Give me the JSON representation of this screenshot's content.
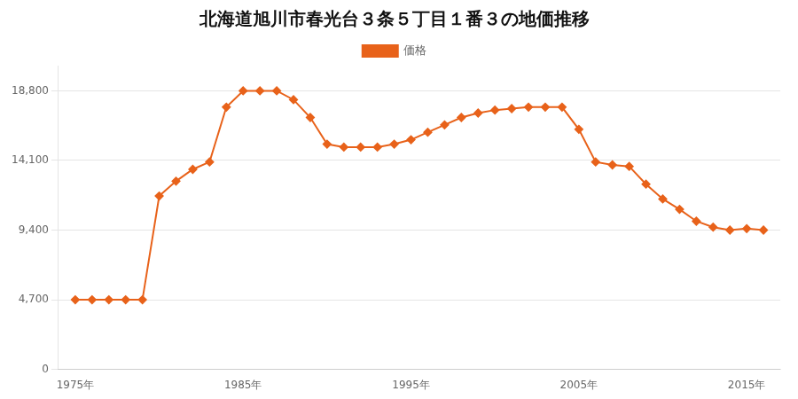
{
  "chart_data": {
    "type": "line",
    "title": "北海道旭川市春光台３条５丁目１番３の地価推移",
    "x": [
      1975,
      1976,
      1977,
      1978,
      1979,
      1980,
      1981,
      1982,
      1983,
      1984,
      1985,
      1986,
      1987,
      1988,
      1989,
      1990,
      1991,
      1992,
      1993,
      1994,
      1995,
      1996,
      1997,
      1998,
      1999,
      2000,
      2001,
      2002,
      2003,
      2004,
      2005,
      2006,
      2007,
      2008,
      2009,
      2010,
      2011,
      2012,
      2013,
      2014,
      2015,
      2016
    ],
    "series": [
      {
        "name": "価格",
        "color": "#E8621A",
        "marker": "diamond",
        "values": [
          4700,
          4700,
          4700,
          4700,
          4700,
          11700,
          12700,
          13500,
          14000,
          17700,
          18800,
          18800,
          18800,
          18200,
          17000,
          15200,
          15000,
          15000,
          15000,
          15200,
          15500,
          16000,
          16500,
          17000,
          17300,
          17500,
          17600,
          17700,
          17700,
          17700,
          16200,
          14000,
          13800,
          13700,
          12500,
          11500,
          10800,
          10000,
          9600,
          9400,
          9500,
          9400
        ]
      }
    ],
    "xlim": [
      1974,
      2017
    ],
    "xticks": [
      {
        "value": 1975,
        "label": "1975年"
      },
      {
        "value": 1985,
        "label": "1985年"
      },
      {
        "value": 1995,
        "label": "1995年"
      },
      {
        "value": 2005,
        "label": "2005年"
      },
      {
        "value": 2015,
        "label": "2015年"
      }
    ],
    "ylim": [
      0,
      20500
    ],
    "yticks": [
      0,
      {
        "value": 4700,
        "label": "4,700"
      },
      {
        "value": 9400,
        "label": "9,400"
      },
      {
        "value": 14100,
        "label": "14,100"
      },
      {
        "value": 18800,
        "label": "18,800"
      }
    ],
    "grid": "y",
    "legend": "top"
  }
}
